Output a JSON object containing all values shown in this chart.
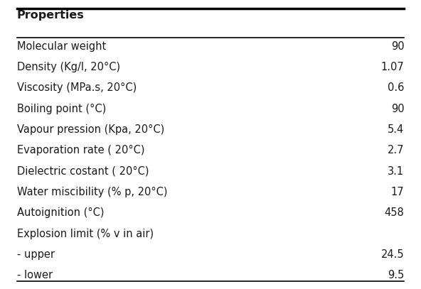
{
  "header": "Properties",
  "rows": [
    [
      "Molecular weight",
      "90"
    ],
    [
      "Density (Kg/l, 20°C)",
      "1.07"
    ],
    [
      "Viscosity (MPa.s, 20°C)",
      "0.6"
    ],
    [
      "Boiling point (°C)",
      "90"
    ],
    [
      "Vapour pression (Kpa, 20°C)",
      "5.4"
    ],
    [
      "Evaporation rate ( 20°C)",
      "2.7"
    ],
    [
      "Dielectric costant ( 20°C)",
      "3.1"
    ],
    [
      "Water miscibility (% p, 20°C)",
      "17"
    ],
    [
      "Autoignition (°C)",
      "458"
    ],
    [
      "Explosion limit (% v in air)",
      ""
    ],
    [
      "- upper",
      "24.5"
    ],
    [
      "- lower",
      "9.5"
    ]
  ],
  "bg_color": "#ffffff",
  "text_color": "#1a1a1a",
  "header_fontsize": 11.5,
  "row_fontsize": 10.5,
  "fig_width": 5.92,
  "fig_height": 4.07,
  "dpi": 100
}
